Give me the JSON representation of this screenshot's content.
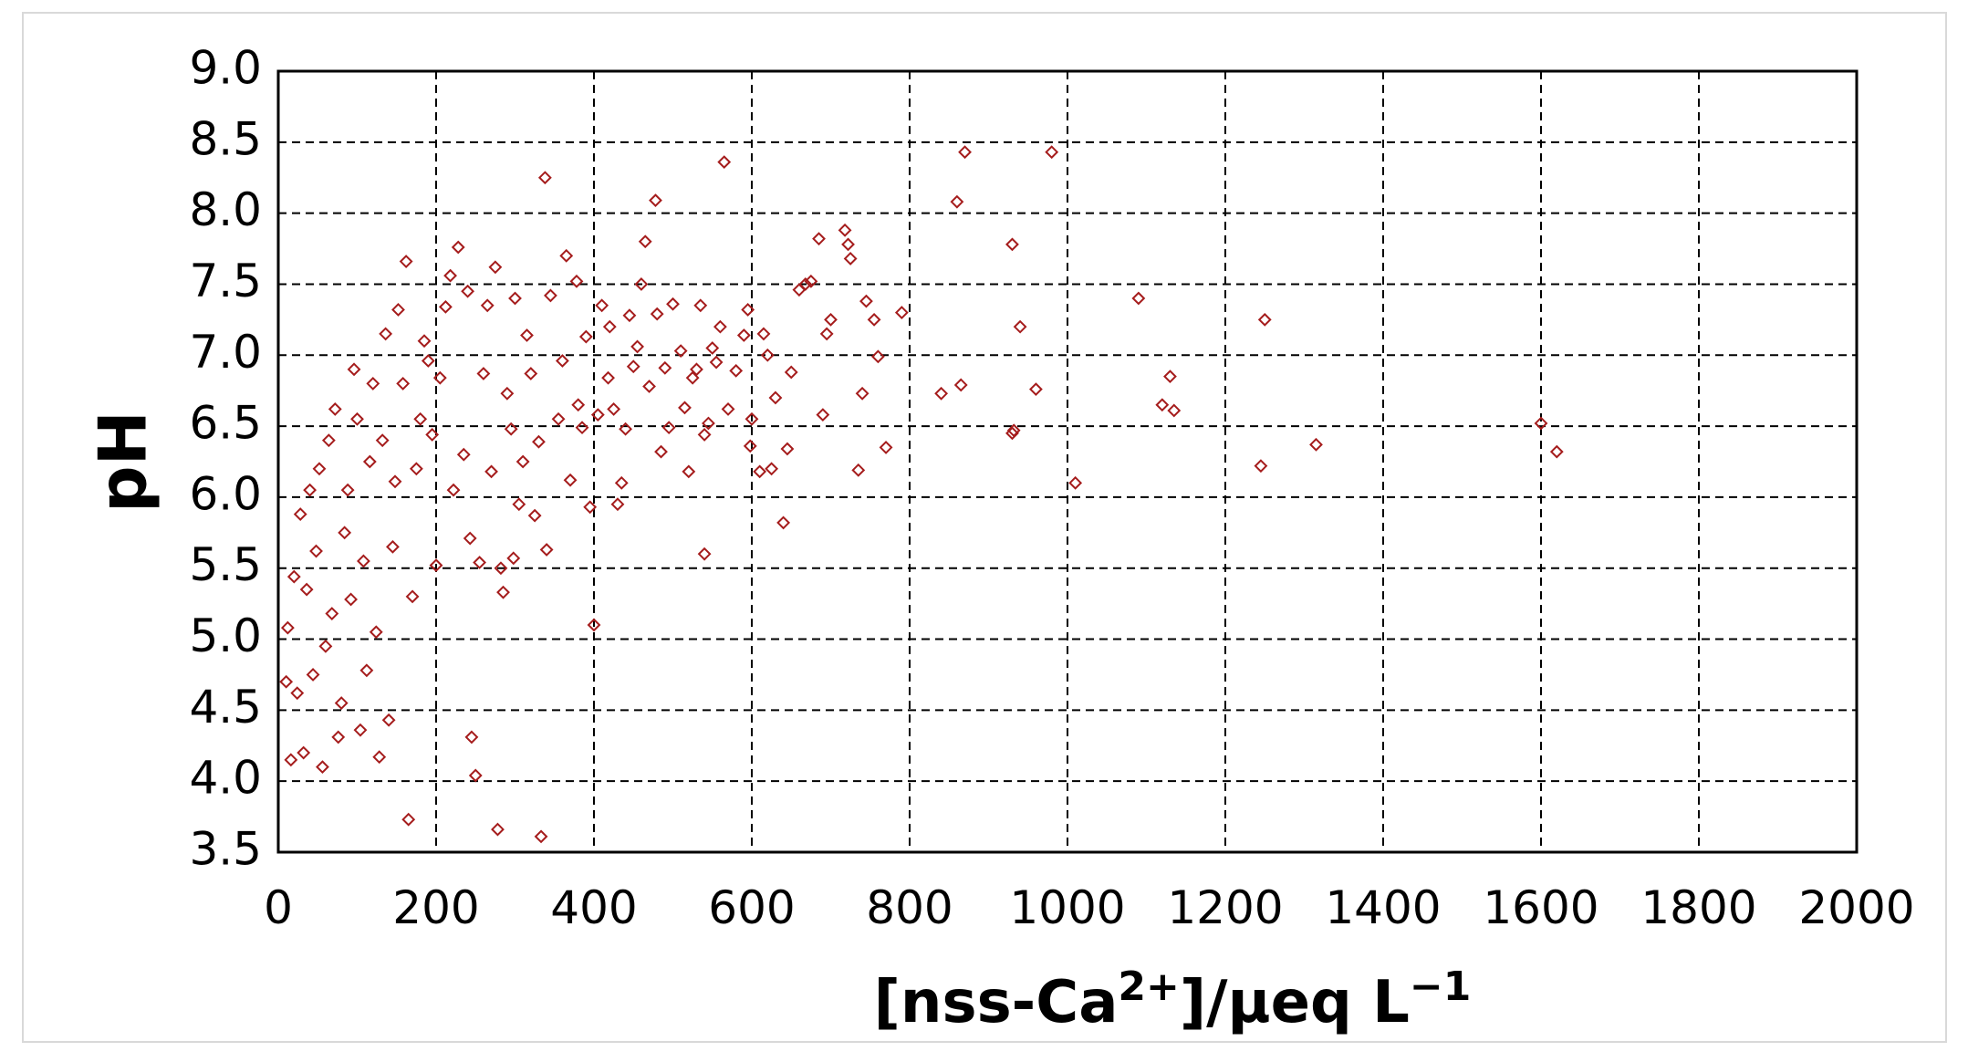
{
  "chart_data": {
    "type": "scatter",
    "title": "",
    "xlabel": {
      "base": "[nss-Ca",
      "superscript": "2+",
      "suffix": "]/μeq L",
      "unit_superscript": "−1"
    },
    "ylabel": "pH",
    "xlim": [
      0,
      2000
    ],
    "ylim": [
      3.5,
      9.0
    ],
    "xticks": [
      0,
      200,
      400,
      600,
      800,
      1000,
      1200,
      1400,
      1600,
      1800,
      2000
    ],
    "xtick_labels": [
      "0",
      "200",
      "400",
      "600",
      "800",
      "1000",
      "1200",
      "1400",
      "1600",
      "1800",
      "2000"
    ],
    "yticks": [
      3.5,
      4.0,
      4.5,
      5.0,
      5.5,
      6.0,
      6.5,
      7.0,
      7.5,
      8.0,
      8.5,
      9.0
    ],
    "ytick_labels": [
      "3.5",
      "4.0",
      "4.5",
      "5.0",
      "5.5",
      "6.0",
      "6.5",
      "7.0",
      "7.5",
      "8.0",
      "8.5",
      "9.0"
    ],
    "grid": true,
    "marker": "diamond-open",
    "marker_color": "#a51c1c",
    "series": [
      {
        "points": [
          [
            1600,
            6.52
          ],
          [
            1620,
            6.32
          ],
          [
            1250,
            7.25
          ],
          [
            1245,
            6.22
          ],
          [
            1315,
            6.37
          ],
          [
            1120,
            6.65
          ],
          [
            1130,
            6.85
          ],
          [
            1135,
            6.61
          ],
          [
            1090,
            7.4
          ],
          [
            1010,
            6.1
          ],
          [
            980,
            8.43
          ],
          [
            870,
            8.43
          ],
          [
            930,
            7.78
          ],
          [
            940,
            7.2
          ],
          [
            960,
            6.76
          ],
          [
            930,
            6.45
          ],
          [
            932,
            6.47
          ],
          [
            860,
            8.08
          ],
          [
            865,
            6.79
          ],
          [
            840,
            6.73
          ],
          [
            790,
            7.3
          ],
          [
            770,
            6.35
          ],
          [
            760,
            6.99
          ],
          [
            755,
            7.25
          ],
          [
            745,
            7.38
          ],
          [
            740,
            6.73
          ],
          [
            735,
            6.19
          ],
          [
            725,
            7.68
          ],
          [
            722,
            7.78
          ],
          [
            718,
            7.88
          ],
          [
            700,
            7.25
          ],
          [
            695,
            7.15
          ],
          [
            690,
            6.58
          ],
          [
            685,
            7.82
          ],
          [
            675,
            7.52
          ],
          [
            668,
            7.5
          ],
          [
            660,
            7.46
          ],
          [
            650,
            6.88
          ],
          [
            645,
            6.34
          ],
          [
            640,
            5.82
          ],
          [
            630,
            6.7
          ],
          [
            625,
            6.2
          ],
          [
            620,
            7.0
          ],
          [
            615,
            7.15
          ],
          [
            610,
            6.18
          ],
          [
            600,
            6.55
          ],
          [
            598,
            6.36
          ],
          [
            595,
            7.32
          ],
          [
            590,
            7.14
          ],
          [
            580,
            6.89
          ],
          [
            570,
            6.62
          ],
          [
            565,
            8.36
          ],
          [
            560,
            7.2
          ],
          [
            555,
            6.95
          ],
          [
            550,
            7.05
          ],
          [
            545,
            6.52
          ],
          [
            540,
            6.44
          ],
          [
            540,
            5.6
          ],
          [
            535,
            7.35
          ],
          [
            530,
            6.9
          ],
          [
            525,
            6.84
          ],
          [
            520,
            6.18
          ],
          [
            515,
            6.63
          ],
          [
            510,
            7.03
          ],
          [
            500,
            7.36
          ],
          [
            495,
            6.49
          ],
          [
            490,
            6.91
          ],
          [
            485,
            6.32
          ],
          [
            480,
            7.29
          ],
          [
            478,
            8.09
          ],
          [
            470,
            6.78
          ],
          [
            465,
            7.8
          ],
          [
            460,
            7.5
          ],
          [
            455,
            7.06
          ],
          [
            450,
            6.92
          ],
          [
            445,
            7.28
          ],
          [
            440,
            6.48
          ],
          [
            435,
            6.1
          ],
          [
            430,
            5.95
          ],
          [
            425,
            6.62
          ],
          [
            420,
            7.2
          ],
          [
            418,
            6.84
          ],
          [
            410,
            7.35
          ],
          [
            405,
            6.58
          ],
          [
            400,
            5.1
          ],
          [
            395,
            5.93
          ],
          [
            390,
            7.13
          ],
          [
            385,
            6.49
          ],
          [
            380,
            6.65
          ],
          [
            378,
            7.52
          ],
          [
            370,
            6.12
          ],
          [
            365,
            7.7
          ],
          [
            360,
            6.96
          ],
          [
            355,
            6.55
          ],
          [
            345,
            7.42
          ],
          [
            340,
            5.63
          ],
          [
            338,
            8.25
          ],
          [
            333,
            3.61
          ],
          [
            330,
            6.39
          ],
          [
            325,
            5.87
          ],
          [
            320,
            6.87
          ],
          [
            315,
            7.14
          ],
          [
            310,
            6.25
          ],
          [
            305,
            5.95
          ],
          [
            300,
            7.4
          ],
          [
            298,
            5.57
          ],
          [
            295,
            6.48
          ],
          [
            290,
            6.73
          ],
          [
            285,
            5.33
          ],
          [
            282,
            5.5
          ],
          [
            278,
            3.66
          ],
          [
            275,
            7.62
          ],
          [
            270,
            6.18
          ],
          [
            265,
            7.35
          ],
          [
            260,
            6.87
          ],
          [
            255,
            5.54
          ],
          [
            250,
            4.04
          ],
          [
            245,
            4.31
          ],
          [
            243,
            5.71
          ],
          [
            240,
            7.45
          ],
          [
            235,
            6.3
          ],
          [
            228,
            7.76
          ],
          [
            222,
            6.05
          ],
          [
            218,
            7.56
          ],
          [
            212,
            7.34
          ],
          [
            205,
            6.84
          ],
          [
            200,
            5.52
          ],
          [
            195,
            6.44
          ],
          [
            190,
            6.96
          ],
          [
            185,
            7.1
          ],
          [
            180,
            6.55
          ],
          [
            175,
            6.2
          ],
          [
            170,
            5.3
          ],
          [
            165,
            3.73
          ],
          [
            162,
            7.66
          ],
          [
            158,
            6.8
          ],
          [
            152,
            7.32
          ],
          [
            148,
            6.11
          ],
          [
            145,
            5.65
          ],
          [
            140,
            4.43
          ],
          [
            136,
            7.15
          ],
          [
            132,
            6.4
          ],
          [
            128,
            4.17
          ],
          [
            124,
            5.05
          ],
          [
            120,
            6.8
          ],
          [
            116,
            6.25
          ],
          [
            112,
            4.78
          ],
          [
            108,
            5.55
          ],
          [
            104,
            4.36
          ],
          [
            100,
            6.55
          ],
          [
            96,
            6.9
          ],
          [
            92,
            5.28
          ],
          [
            88,
            6.05
          ],
          [
            84,
            5.75
          ],
          [
            80,
            4.55
          ],
          [
            76,
            4.31
          ],
          [
            72,
            6.62
          ],
          [
            68,
            5.18
          ],
          [
            64,
            6.4
          ],
          [
            60,
            4.95
          ],
          [
            56,
            4.1
          ],
          [
            52,
            6.2
          ],
          [
            48,
            5.62
          ],
          [
            44,
            4.75
          ],
          [
            40,
            6.05
          ],
          [
            36,
            5.35
          ],
          [
            32,
            4.2
          ],
          [
            28,
            5.88
          ],
          [
            24,
            4.62
          ],
          [
            20,
            5.44
          ],
          [
            16,
            4.15
          ],
          [
            12,
            5.08
          ],
          [
            10,
            4.7
          ]
        ]
      }
    ]
  }
}
